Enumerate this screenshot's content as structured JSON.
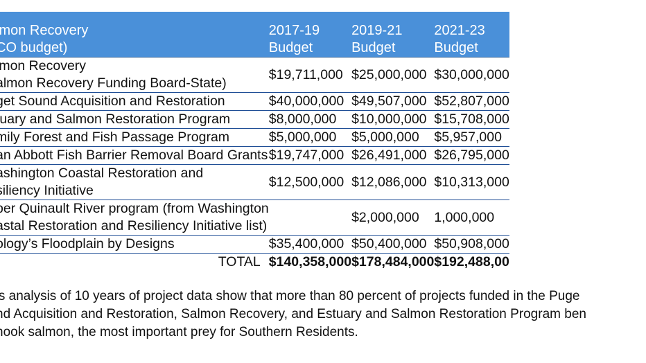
{
  "table": {
    "headers": {
      "col0_line1": "lmon Recovery",
      "col0_line2": "CO budget)",
      "col1_line1": "2017-19",
      "col1_line2": "Budget",
      "col2_line1": "2019-21",
      "col2_line2": "Budget",
      "col3_line1": "2021-23",
      "col3_line2": "Budget"
    },
    "rows": [
      {
        "name1": "lmon Recovery",
        "name2": "almon Recovery Funding Board-State)",
        "v1": "$19,711,000",
        "v2": "$25,000,000",
        "v3": "$30,000,000"
      },
      {
        "name1": "get Sound Acquisition and Restoration",
        "name2": "",
        "v1": "$40,000,000",
        "v2": "$49,507,000",
        "v3": "$52,807,000"
      },
      {
        "name1": "tuary and Salmon Restoration Program",
        "name2": "",
        "v1": "$8,000,000",
        "v2": "$10,000,000",
        "v3": "$15,708,000"
      },
      {
        "name1": "mily Forest and Fish Passage Program",
        "name2": "",
        "v1": "$5,000,000",
        "v2": "$5,000,000",
        "v3": "$5,957,000"
      },
      {
        "name1": "an Abbott Fish Barrier Removal Board Grants",
        "name2": "",
        "v1": "$19,747,000",
        "v2": "$26,491,000",
        "v3": "$26,795,000"
      },
      {
        "name1": "ashington Coastal Restoration and",
        "name2": "siliency Initiative",
        "v1": "$12,500,000",
        "v2": "$12,086,000",
        "v3": "$10,313,000"
      },
      {
        "name1": "per Quinault River program (from Washington",
        "name2": "astal Restoration and Resiliency Initiative list)",
        "v1": "",
        "v2": "$2,000,000",
        "v3": "1,000,000"
      },
      {
        "name1": "ology’s Floodplain by Designs",
        "name2": "",
        "v1": "$35,400,000",
        "v2": "$50,400,000",
        "v3": "$50,908,000"
      }
    ],
    "total": {
      "label": "TOTAL",
      "v1": "$140,358,000",
      "v2": "$178,484,000",
      "v3": "$192,488,00"
    }
  },
  "paragraph": {
    "line1": "’s analysis of 10 years of project data show that more than 80 percent of projects funded in the Puge",
    "line2": "nd Acquisition and Restoration, Salmon Recovery, and Estuary and Salmon Restoration Program ben",
    "line3": "hook salmon, the most important prey for Southern Residents."
  }
}
